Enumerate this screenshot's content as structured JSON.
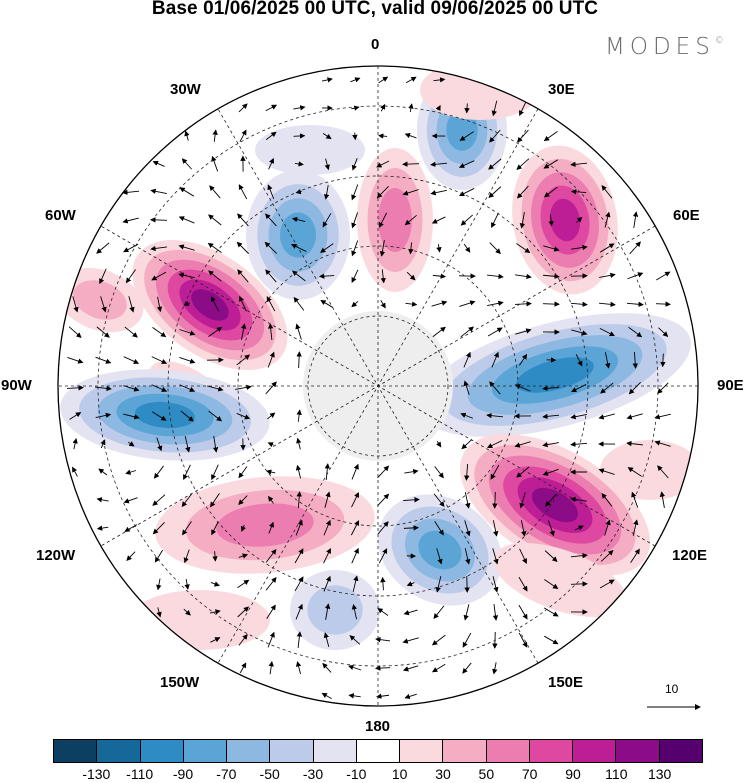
{
  "title": "Base 01/06/2025 00 UTC, valid 09/06/2025 00 UTC",
  "brand": "MODES",
  "brand_mark": "©",
  "longitude_labels": {
    "top": "0",
    "bottom": "180",
    "left": "90W",
    "right": "90E",
    "nw1": "30W",
    "nw2": "60W",
    "ne1": "30E",
    "ne2": "60E",
    "sw1": "120W",
    "sw2": "150W",
    "se1": "120E",
    "se2": "150E"
  },
  "reference_vector": {
    "label": "10"
  },
  "colorbar": {
    "colors": [
      "#0d3f63",
      "#17689a",
      "#2f8bc4",
      "#5aa5d6",
      "#8db8e2",
      "#bccbe9",
      "#e4e3f2",
      "#ffffff",
      "#fadadf",
      "#f4adc3",
      "#ec7db0",
      "#de48a0",
      "#bd1e95",
      "#8c0b86",
      "#560070"
    ],
    "labels": [
      "-130",
      "-110",
      "-90",
      "-70",
      "-50",
      "-30",
      "-10",
      "10",
      "30",
      "50",
      "70",
      "90",
      "110",
      "130"
    ]
  },
  "map_style": {
    "projection": "north-polar-stereographic",
    "land_color": "#eeeeee",
    "graticule": "dashed",
    "vector_color": "#000000"
  }
}
